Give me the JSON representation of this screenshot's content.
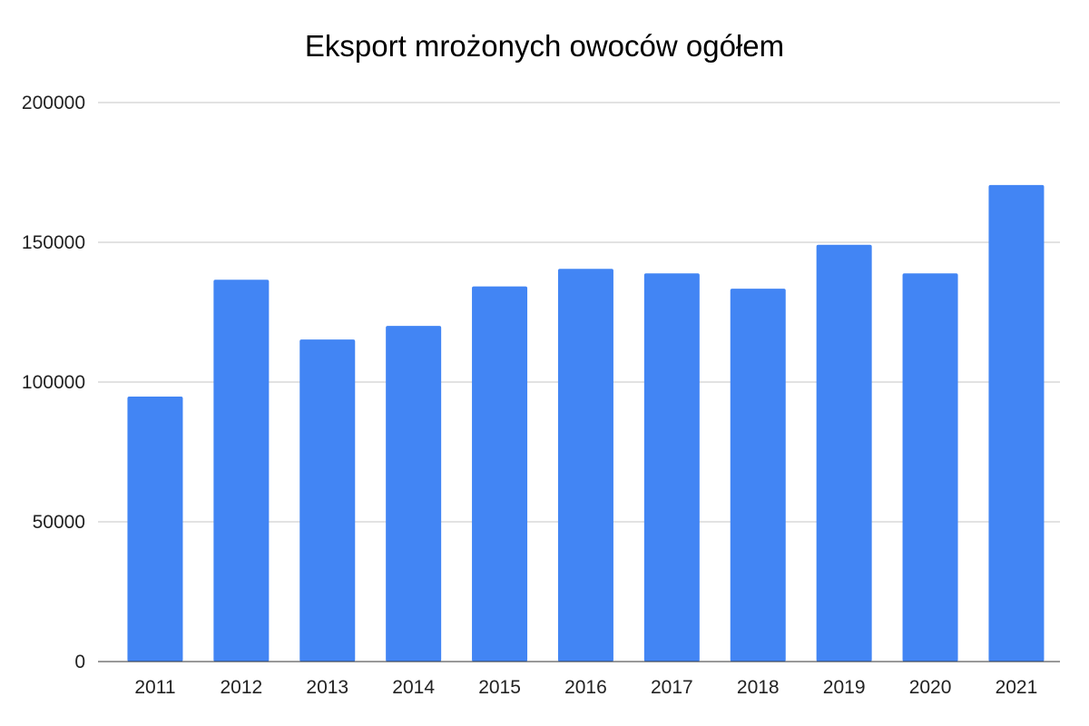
{
  "chart_data": {
    "type": "bar",
    "title": "Eksport mrożonych owoców ogółem",
    "xlabel": "",
    "ylabel": "",
    "categories": [
      "2011",
      "2012",
      "2013",
      "2014",
      "2015",
      "2016",
      "2017",
      "2018",
      "2019",
      "2020",
      "2021"
    ],
    "values": [
      94800,
      136600,
      115200,
      120100,
      134200,
      140500,
      138900,
      133400,
      149100,
      138900,
      170500
    ],
    "ylim": [
      0,
      200000
    ],
    "yticks": [
      "0",
      "50000",
      "100000",
      "150000",
      "200000"
    ],
    "grid": true,
    "legend": "none",
    "colors": {
      "bar": "#4285f4",
      "grid": "#d9d9d9",
      "axis": "#333333"
    }
  }
}
